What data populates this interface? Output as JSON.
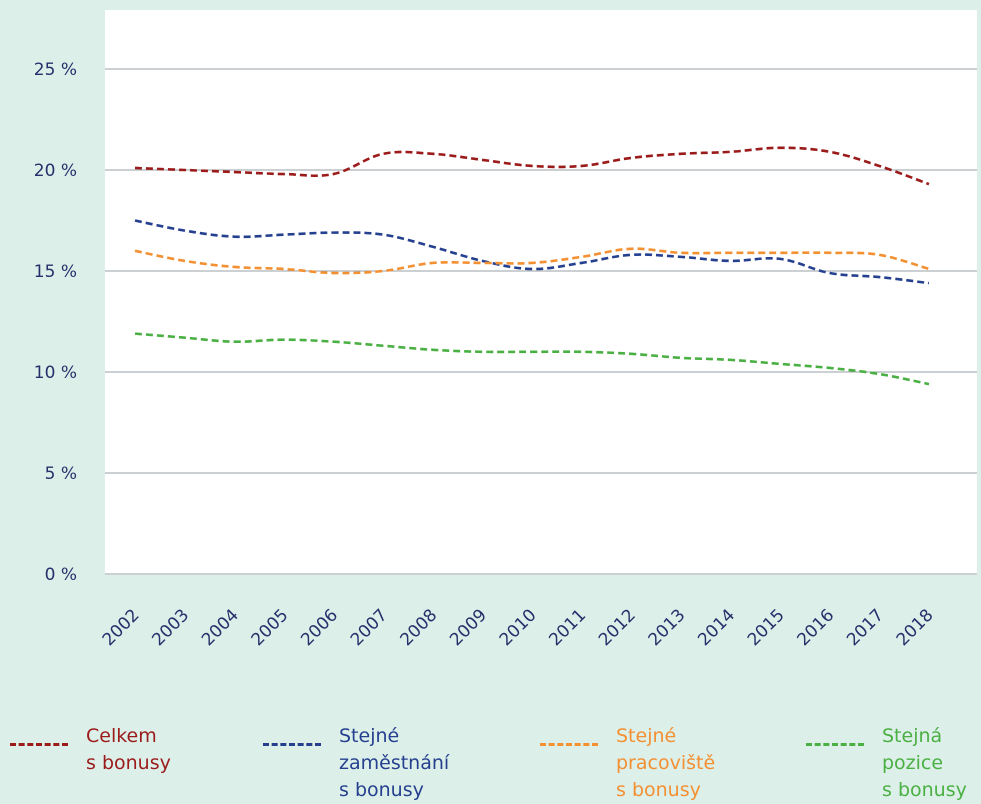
{
  "chart_data": {
    "type": "line",
    "title": "",
    "xlabel": "",
    "ylabel": "",
    "categories": [
      "2002",
      "2003",
      "2004",
      "2005",
      "2006",
      "2007",
      "2008",
      "2009",
      "2010",
      "2011",
      "2012",
      "2013",
      "2014",
      "2015",
      "2016",
      "2017",
      "2018"
    ],
    "ylim": [
      0,
      28
    ],
    "yticks": [
      0,
      5,
      10,
      15,
      20,
      25
    ],
    "ytick_labels": [
      "0 %",
      "5 %",
      "10 %",
      "15 %",
      "20 %",
      "25 %"
    ],
    "grid": true,
    "legend_position": "bottom",
    "series": [
      {
        "name": "Celkem\ns bonusy",
        "color": "#9b1b1b",
        "values": [
          20.1,
          20.0,
          19.9,
          19.8,
          19.8,
          20.8,
          20.8,
          20.5,
          20.2,
          20.2,
          20.6,
          20.8,
          20.9,
          21.1,
          20.9,
          20.2,
          19.3
        ]
      },
      {
        "name": "Stejné\nzaměstnání\ns bonusy",
        "color": "#25408f",
        "values": [
          17.5,
          17.0,
          16.7,
          16.8,
          16.9,
          16.8,
          16.2,
          15.5,
          15.1,
          15.4,
          15.8,
          15.7,
          15.5,
          15.6,
          14.9,
          14.7,
          14.4
        ]
      },
      {
        "name": "Stejné\npracoviště\ns bonusy",
        "color": "#f39032",
        "values": [
          16.0,
          15.5,
          15.2,
          15.1,
          14.9,
          15.0,
          15.4,
          15.4,
          15.4,
          15.7,
          16.1,
          15.9,
          15.9,
          15.9,
          15.9,
          15.8,
          15.1
        ]
      },
      {
        "name": "Stejná\npozice\ns bonusy",
        "color": "#4bb043",
        "values": [
          11.9,
          11.7,
          11.5,
          11.6,
          11.5,
          11.3,
          11.1,
          11.0,
          11.0,
          11.0,
          10.9,
          10.7,
          10.6,
          10.4,
          10.2,
          9.9,
          9.4
        ]
      }
    ]
  },
  "legend": {
    "items": [
      {
        "label": "Celkem\ns bonusy",
        "color": "#9b1b1b"
      },
      {
        "label": "Stejné\nzaměstnání\ns bonusy",
        "color": "#25408f"
      },
      {
        "label": "Stejné\npracoviště\ns bonusy",
        "color": "#f39032"
      },
      {
        "label": "Stejná\npozice\ns bonusy",
        "color": "#4bb043"
      }
    ]
  },
  "colors": {
    "background": "#dcefe9",
    "plot_area": "#ffffff",
    "gridline": "#9aa0a6",
    "axis_text": "#2a2f6b"
  }
}
